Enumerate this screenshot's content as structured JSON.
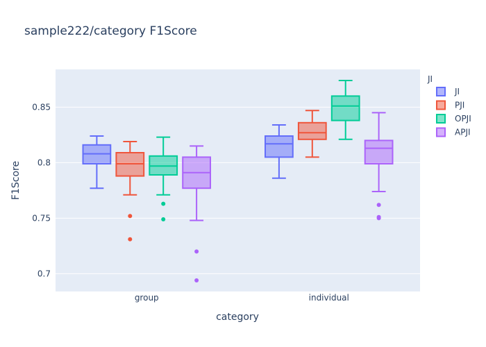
{
  "chart_data": {
    "type": "box",
    "title": "sample222/category F1Score",
    "xlabel": "category",
    "ylabel": "F1Score",
    "categories": [
      "group",
      "individual"
    ],
    "ylim": [
      0.684,
      0.884
    ],
    "yticks": [
      0.7,
      0.75,
      0.8,
      0.85
    ],
    "ytick_labels": [
      "0.7",
      "0.75",
      "0.8",
      "0.85"
    ],
    "grid": true,
    "legend": {
      "title": "JI",
      "position": "top-right"
    },
    "series": [
      {
        "name": "JI",
        "color": "#636efa",
        "fill": "rgba(99,110,250,0.5)",
        "boxes": [
          {
            "category": "group",
            "min": 0.777,
            "q1": 0.799,
            "median": 0.808,
            "q3": 0.816,
            "max": 0.824,
            "outliers": []
          },
          {
            "category": "individual",
            "min": 0.786,
            "q1": 0.805,
            "median": 0.817,
            "q3": 0.824,
            "max": 0.834,
            "outliers": []
          }
        ]
      },
      {
        "name": "PJI",
        "color": "#ef553b",
        "fill": "rgba(239,85,59,0.5)",
        "boxes": [
          {
            "category": "group",
            "min": 0.771,
            "q1": 0.788,
            "median": 0.799,
            "q3": 0.809,
            "max": 0.819,
            "outliers": [
              0.752,
              0.731
            ]
          },
          {
            "category": "individual",
            "min": 0.805,
            "q1": 0.821,
            "median": 0.827,
            "q3": 0.836,
            "max": 0.847,
            "outliers": []
          }
        ]
      },
      {
        "name": "OPJI",
        "color": "#00cc96",
        "fill": "rgba(0,204,150,0.5)",
        "boxes": [
          {
            "category": "group",
            "min": 0.771,
            "q1": 0.789,
            "median": 0.797,
            "q3": 0.806,
            "max": 0.823,
            "outliers": [
              0.763,
              0.749
            ]
          },
          {
            "category": "individual",
            "min": 0.821,
            "q1": 0.838,
            "median": 0.851,
            "q3": 0.86,
            "max": 0.874,
            "outliers": []
          }
        ]
      },
      {
        "name": "APJI",
        "color": "#ab63fa",
        "fill": "rgba(171,99,250,0.5)",
        "boxes": [
          {
            "category": "group",
            "min": 0.748,
            "q1": 0.777,
            "median": 0.791,
            "q3": 0.805,
            "max": 0.815,
            "outliers": [
              0.72,
              0.694
            ]
          },
          {
            "category": "individual",
            "min": 0.774,
            "q1": 0.799,
            "median": 0.813,
            "q3": 0.82,
            "max": 0.845,
            "outliers": [
              0.762,
              0.751,
              0.75
            ]
          }
        ]
      }
    ]
  },
  "colors": {
    "plot_bg": "#e5ecf6",
    "grid": "#ffffff",
    "text": "#2a3f5f"
  }
}
